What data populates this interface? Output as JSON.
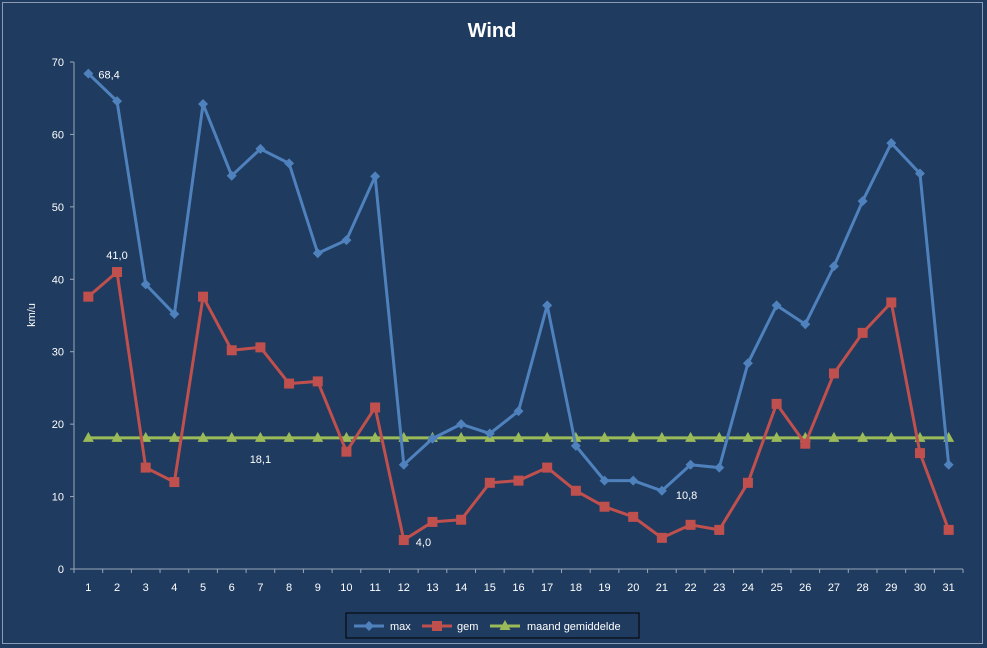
{
  "chart_data": {
    "type": "line",
    "title": "Wind",
    "xlabel": "",
    "ylabel": "km/u",
    "ylim": [
      0,
      70
    ],
    "yticks": [
      0,
      10,
      20,
      30,
      40,
      50,
      60,
      70
    ],
    "grid": false,
    "legend_position": "bottom",
    "categories": [
      "1",
      "2",
      "3",
      "4",
      "5",
      "6",
      "7",
      "8",
      "9",
      "10",
      "11",
      "12",
      "13",
      "14",
      "15",
      "16",
      "17",
      "18",
      "19",
      "20",
      "21",
      "22",
      "23",
      "24",
      "25",
      "26",
      "27",
      "28",
      "29",
      "30",
      "31"
    ],
    "series": [
      {
        "name": "max",
        "color": "#4f81bd",
        "marker": "diamond",
        "values": [
          68.4,
          64.6,
          39.3,
          35.2,
          64.2,
          54.3,
          58.0,
          56.0,
          43.6,
          45.4,
          54.2,
          14.4,
          18.0,
          20.0,
          18.7,
          21.8,
          36.4,
          17.0,
          12.2,
          12.2,
          10.8,
          14.4,
          14.0,
          28.4,
          36.4,
          33.8,
          41.8,
          50.8,
          58.8,
          54.6,
          14.4
        ]
      },
      {
        "name": "gem",
        "color": "#c0504d",
        "marker": "square",
        "values": [
          37.6,
          41.0,
          14.0,
          12.0,
          37.6,
          30.2,
          30.6,
          25.6,
          25.9,
          16.2,
          22.3,
          4.0,
          6.5,
          6.8,
          11.9,
          12.2,
          14.0,
          10.8,
          8.6,
          7.2,
          4.3,
          6.1,
          5.4,
          11.9,
          22.8,
          17.3,
          27.0,
          32.6,
          36.8,
          16.0,
          5.4
        ]
      },
      {
        "name": "maand gemiddelde",
        "color": "#9bbb59",
        "marker": "triangle",
        "values": [
          18.1,
          18.1,
          18.1,
          18.1,
          18.1,
          18.1,
          18.1,
          18.1,
          18.1,
          18.1,
          18.1,
          18.1,
          18.1,
          18.1,
          18.1,
          18.1,
          18.1,
          18.1,
          18.1,
          18.1,
          18.1,
          18.1,
          18.1,
          18.1,
          18.1,
          18.1,
          18.1,
          18.1,
          18.1,
          18.1,
          18.1
        ]
      }
    ],
    "annotations": [
      {
        "text": "68,4",
        "series": 0,
        "index": 0
      },
      {
        "text": "41,0",
        "series": 1,
        "index": 1
      },
      {
        "text": "18,1",
        "series": 2,
        "index": 6
      },
      {
        "text": "4,0",
        "series": 1,
        "index": 11
      },
      {
        "text": "10,8",
        "series": 0,
        "index": 20
      }
    ]
  }
}
